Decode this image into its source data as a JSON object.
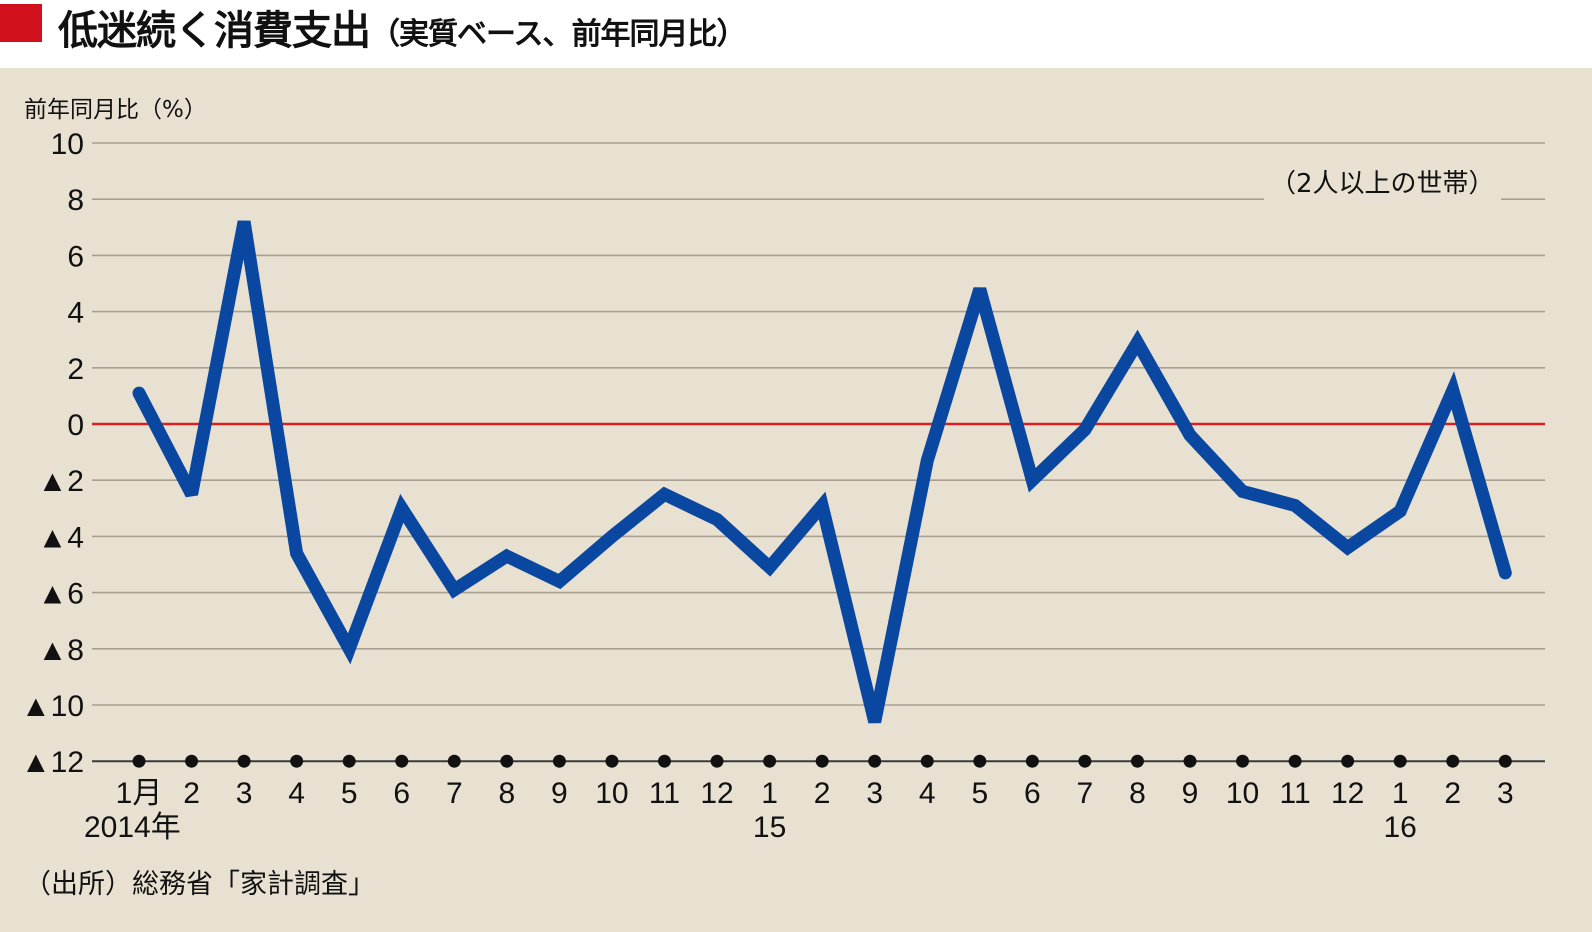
{
  "header": {
    "title": "低迷続く消費支出",
    "subtitle": "（実質ベース、前年同月比）",
    "accent_color": "#d0101a"
  },
  "chart": {
    "ylabel": "前年同月比（%）",
    "note": "（2人以上の世帯）",
    "source": "（出所）総務省「家計調査」",
    "year_labels": [
      {
        "label": "2014年",
        "index": 0
      },
      {
        "label": "15",
        "index": 12
      },
      {
        "label": "16",
        "index": 24
      }
    ],
    "line_color": "#0a47a0",
    "zero_line_color": "#d92020",
    "background_color": "#e8e1d2"
  },
  "chart_data": {
    "type": "line",
    "title": "低迷続く消費支出（実質ベース、前年同月比）",
    "xlabel": "",
    "ylabel": "前年同月比（%）",
    "ylim": [
      -12,
      10
    ],
    "yticks": [
      10,
      8,
      6,
      4,
      2,
      0,
      -2,
      -4,
      -6,
      -8,
      -10,
      -12
    ],
    "ytick_labels": [
      "10",
      "8",
      "6",
      "4",
      "2",
      "0",
      "▲2",
      "▲4",
      "▲6",
      "▲8",
      "▲10",
      "▲12"
    ],
    "grid": true,
    "annotations": [
      "（2人以上の世帯）",
      "（出所）総務省「家計調査」"
    ],
    "categories": [
      "1月",
      "2",
      "3",
      "4",
      "5",
      "6",
      "7",
      "8",
      "9",
      "10",
      "11",
      "12",
      "1",
      "2",
      "3",
      "4",
      "5",
      "6",
      "7",
      "8",
      "9",
      "10",
      "11",
      "12",
      "1",
      "2",
      "3"
    ],
    "x": [
      "2014-01",
      "2014-02",
      "2014-03",
      "2014-04",
      "2014-05",
      "2014-06",
      "2014-07",
      "2014-08",
      "2014-09",
      "2014-10",
      "2014-11",
      "2014-12",
      "2015-01",
      "2015-02",
      "2015-03",
      "2015-04",
      "2015-05",
      "2015-06",
      "2015-07",
      "2015-08",
      "2015-09",
      "2015-10",
      "2015-11",
      "2015-12",
      "2016-01",
      "2016-02",
      "2016-03"
    ],
    "series": [
      {
        "name": "消費支出（実質、前年同月比）",
        "values": [
          1.1,
          -2.5,
          7.2,
          -4.6,
          -8.0,
          -3.0,
          -5.9,
          -4.7,
          -5.6,
          -4.0,
          -2.5,
          -3.4,
          -5.1,
          -2.9,
          -10.6,
          -1.3,
          4.8,
          -2.0,
          -0.2,
          2.9,
          -0.4,
          -2.4,
          -2.9,
          -4.4,
          -3.1,
          1.2,
          -5.3
        ]
      }
    ]
  }
}
